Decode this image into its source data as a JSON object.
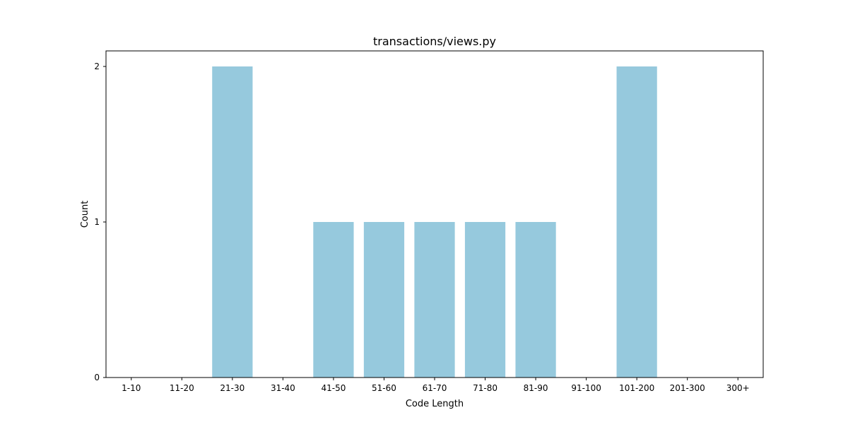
{
  "chart_data": {
    "type": "bar",
    "title": "transactions/views.py",
    "xlabel": "Code Length",
    "ylabel": "Count",
    "categories": [
      "1-10",
      "11-20",
      "21-30",
      "31-40",
      "41-50",
      "51-60",
      "61-70",
      "71-80",
      "81-90",
      "91-100",
      "101-200",
      "201-300",
      "300+"
    ],
    "values": [
      0,
      0,
      2,
      0,
      1,
      1,
      1,
      1,
      1,
      0,
      2,
      0,
      0
    ],
    "yticks": [
      "0",
      "1",
      "2"
    ],
    "ylim": [
      0,
      2.1
    ],
    "grid": false,
    "bar_color": "#96c9dd"
  }
}
